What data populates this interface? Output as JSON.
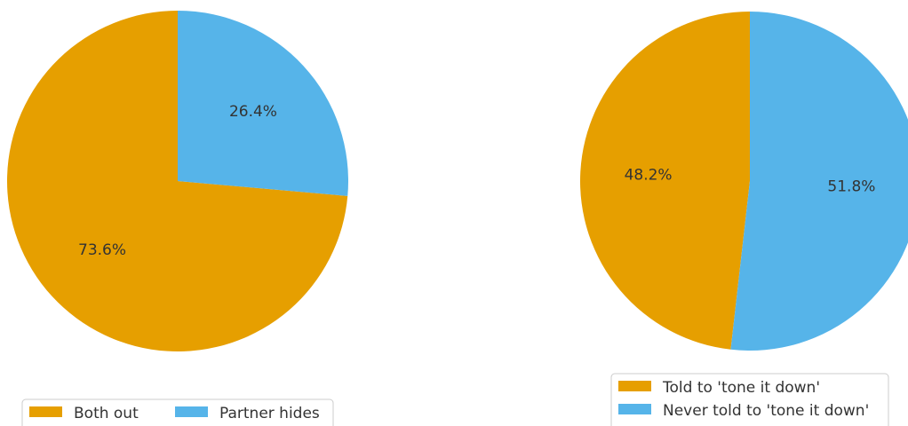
{
  "chart_data": [
    {
      "type": "pie",
      "categories": [
        "Both out",
        "Partner hides"
      ],
      "values": [
        73.6,
        26.4
      ],
      "value_labels": [
        "73.6%",
        "26.4%"
      ],
      "colors": [
        "#E69F00",
        "#56B4E9"
      ],
      "start_angle": 90,
      "counterclockwise": true,
      "legend": "lower center",
      "legend_ncol": 2
    },
    {
      "type": "pie",
      "categories": [
        "Told to 'tone it down'",
        "Never told to 'tone it down'"
      ],
      "values": [
        48.2,
        51.8
      ],
      "value_labels": [
        "48.2%",
        "51.8%"
      ],
      "colors": [
        "#E69F00",
        "#56B4E9"
      ],
      "start_angle": 90,
      "counterclockwise": true,
      "legend": "lower center",
      "legend_ncol": 1
    }
  ]
}
